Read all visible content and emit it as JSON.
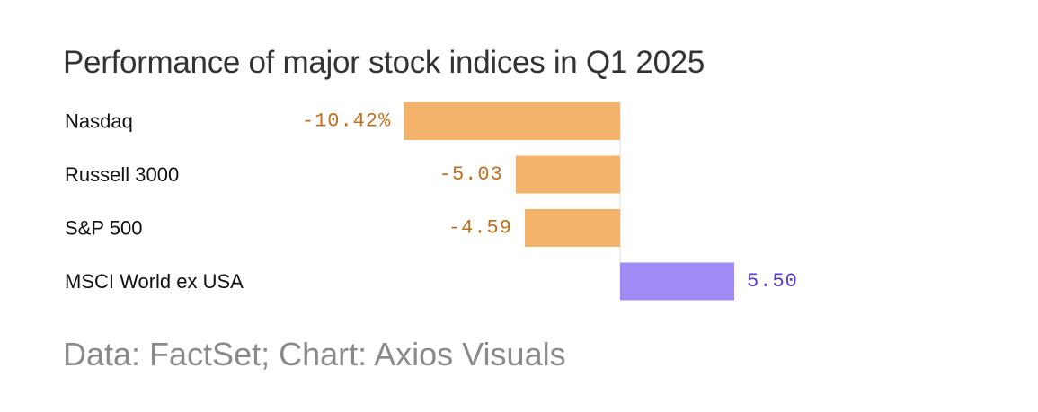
{
  "chart_data": {
    "type": "bar",
    "orientation": "horizontal",
    "title": "Performance of major stock indices in Q1 2025",
    "source": "Data: FactSet; Chart: Axios Visuals",
    "categories": [
      "Nasdaq",
      "Russell 3000",
      "S&P 500",
      "MSCI World ex USA"
    ],
    "values": [
      -10.42,
      -5.03,
      -4.59,
      5.5
    ],
    "value_labels": [
      "-10.42%",
      "-5.03",
      "-4.59",
      "5.50"
    ],
    "xlabel": "",
    "ylabel": "",
    "xlim": [
      -11,
      11
    ],
    "grid": false,
    "colors": {
      "negative_bar": "#f3b36b",
      "positive_bar": "#a08af5",
      "negative_label": "#c26d1c",
      "positive_label": "#5b39d6",
      "zero_line": "#dddddd"
    }
  }
}
